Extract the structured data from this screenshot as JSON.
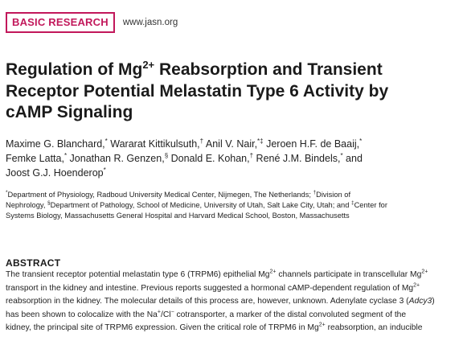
{
  "header": {
    "badge": "BASIC RESEARCH",
    "site": "www.jasn.org"
  },
  "title": {
    "line1_pre": "Regulation of Mg",
    "line1_sup": "2+",
    "line1_post": " Reabsorption and Transient",
    "line2": "Receptor Potential Melastatin Type 6 Activity by",
    "line3": "cAMP Signaling"
  },
  "authors": {
    "a1": "Maxime G. Blanchard,",
    "a1m": "*",
    "a2": " Wararat Kittikulsuth,",
    "a2m": "†",
    "a3": " Anil V. Nair,",
    "a3m": "*‡",
    "a4": " Jeroen H.F. de Baaij,",
    "a4m": "*",
    "a5": "Femke Latta,",
    "a5m": "*",
    "a6": " Jonathan R. Genzen,",
    "a6m": "§",
    "a7": " Donald E. Kohan,",
    "a7m": "†",
    "a8": " René J.M. Bindels,",
    "a8m": "*",
    "a8tail": " and",
    "a9": "Joost G.J. Hoenderop",
    "a9m": "*"
  },
  "affiliations": {
    "m1": "*",
    "t1": "Department of Physiology, Radboud University Medical Center, Nijmegen, The Netherlands; ",
    "m2": "†",
    "t2": "Division of",
    "t3": "Nephrology, ",
    "m3": "§",
    "t4": "Department of Pathology, School of Medicine, University of Utah, Salt Lake City, Utah; and ",
    "m4": "‡",
    "t5": "Center for",
    "t6": "Systems Biology, Massachusetts General Hospital and Harvard Medical School, Boston, Massachusetts"
  },
  "abstract": {
    "heading": "ABSTRACT",
    "l1a": "The transient receptor potential melastatin type 6 (TRPM6) epithelial Mg",
    "l1s": "2+",
    "l1b": " channels participate in transcellular Mg",
    "l1s2": "2+",
    "l2a": "transport in the kidney and intestine. Previous reports suggested a hormonal cAMP-dependent regulation of Mg",
    "l2s": "2+",
    "l3a": "reabsorption in the kidney. The molecular details of this process are, however, unknown. Adenylate cyclase 3 (",
    "l3i": "Adcy3",
    "l3b": ")",
    "l4a": "has been shown to colocalize with the Na",
    "l4s": "+",
    "l4b": "/Cl",
    "l4s2": "−",
    "l4c": " cotransporter, a marker of the distal convoluted segment of the",
    "l5a": "kidney, the principal site of TRPM6 expression. Given the critical role of TRPM6 in Mg",
    "l5s": "2+",
    "l5b": " reabsorption, an inducible"
  }
}
